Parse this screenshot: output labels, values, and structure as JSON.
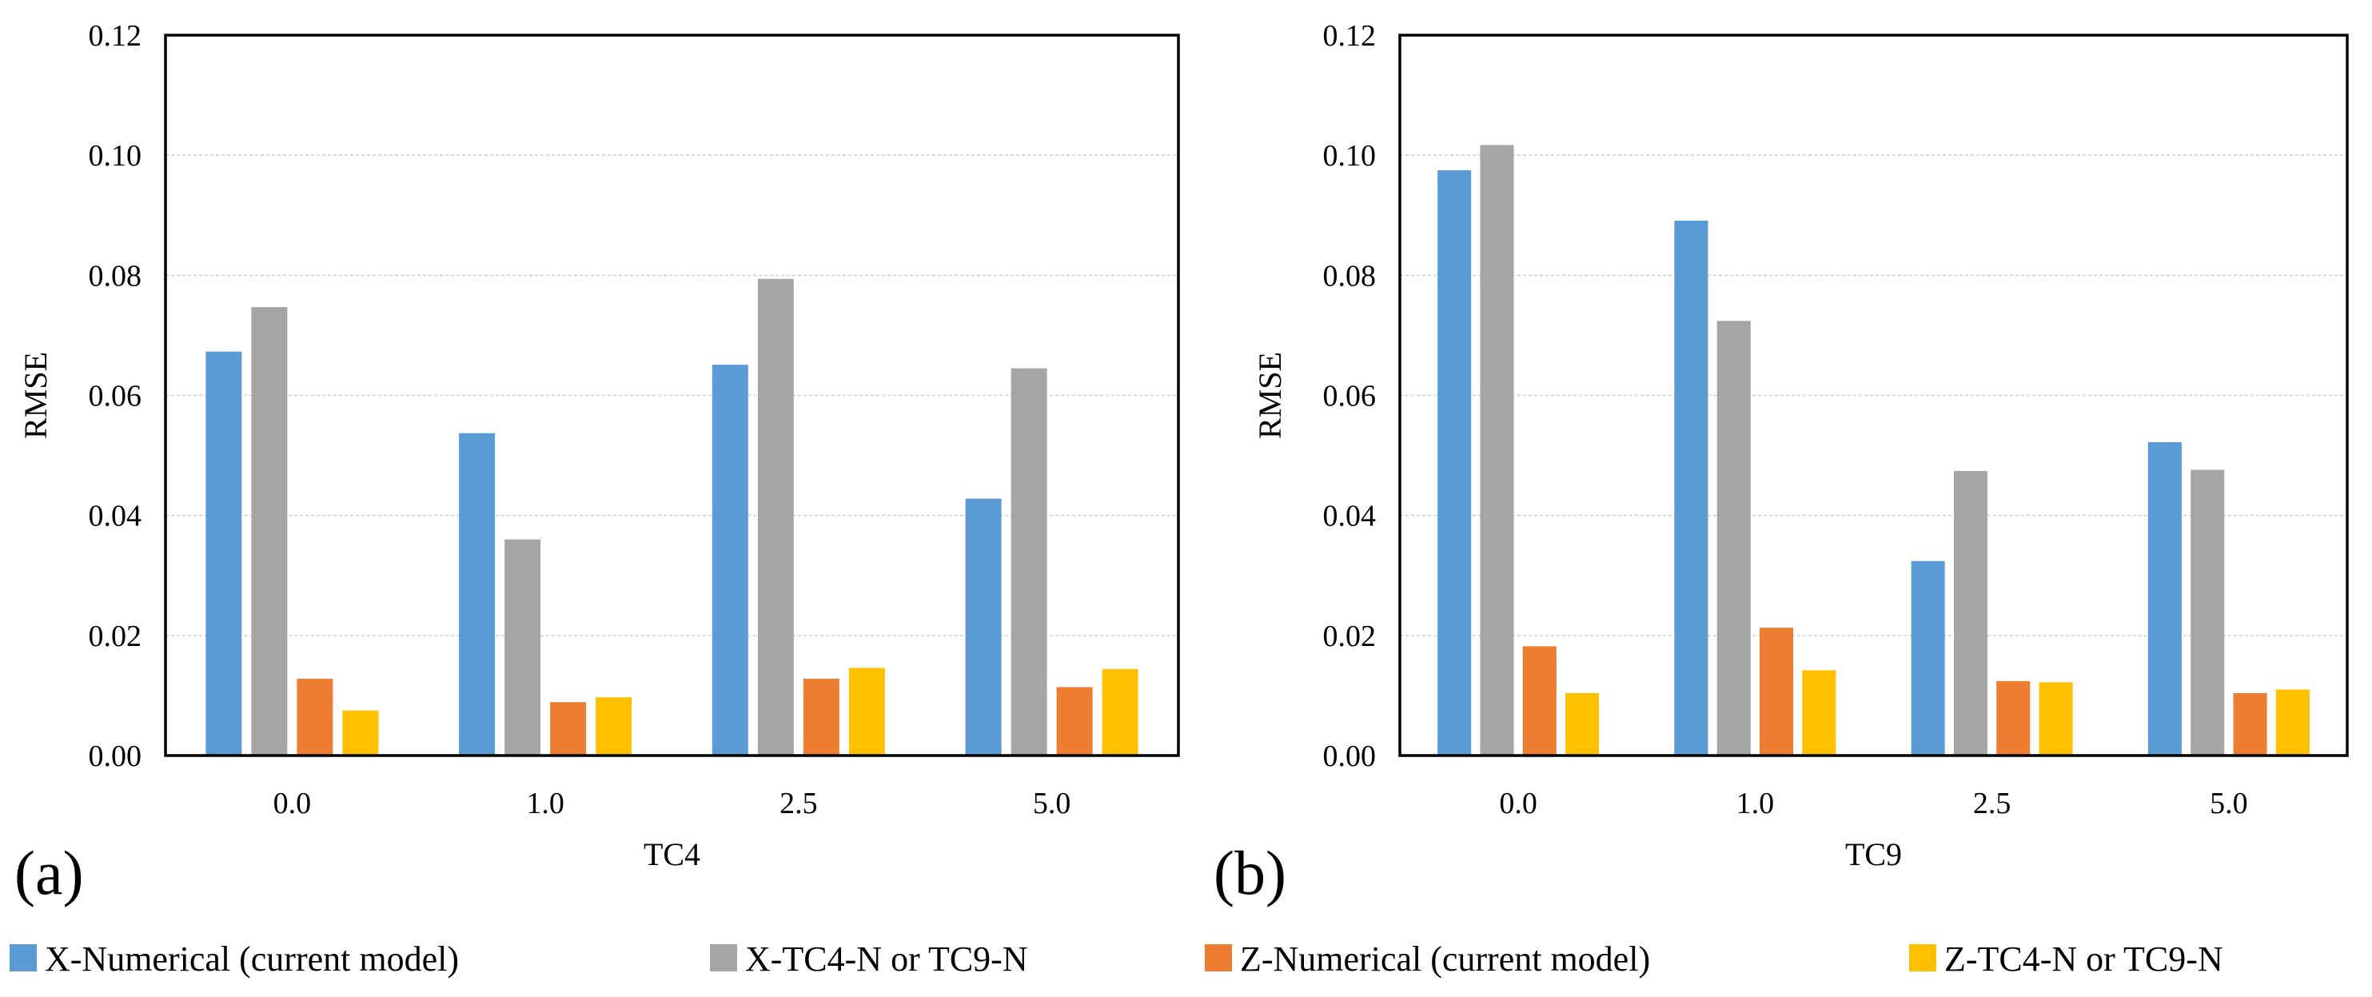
{
  "panel_labels": [
    "(a)",
    "(b)"
  ],
  "legend": [
    {
      "label": "X-Numerical (current model)",
      "color": "#5B9BD5"
    },
    {
      "label": "X-TC4-N or TC9-N",
      "color": "#A5A5A5"
    },
    {
      "label": "Z-Numerical (current model)",
      "color": "#ED7D31"
    },
    {
      "label": "Z-TC4-N or TC9-N",
      "color": "#FFC000"
    }
  ],
  "chart_data": [
    {
      "type": "bar",
      "panel": "(a)",
      "categories": [
        "0.0",
        "1.0",
        "2.5",
        "5.0"
      ],
      "xlabel": "TC4",
      "ylabel": "RMSE",
      "ylim": [
        0,
        0.12
      ],
      "yticks": [
        "0.00",
        "0.02",
        "0.04",
        "0.06",
        "0.08",
        "0.10",
        "0.12"
      ],
      "grid": true,
      "series": [
        {
          "name": "X-Numerical (current model)",
          "values": [
            0.0673,
            0.0537,
            0.0651,
            0.0428
          ]
        },
        {
          "name": "X-TC4-N or TC9-N",
          "values": [
            0.0747,
            0.036,
            0.0794,
            0.0645
          ]
        },
        {
          "name": "Z-Numerical (current model)",
          "values": [
            0.0128,
            0.0089,
            0.0128,
            0.0114
          ]
        },
        {
          "name": "Z-TC4-N or TC9-N",
          "values": [
            0.0075,
            0.0097,
            0.0146,
            0.0144
          ]
        }
      ]
    },
    {
      "type": "bar",
      "panel": "(b)",
      "categories": [
        "0.0",
        "1.0",
        "2.5",
        "5.0"
      ],
      "xlabel": "TC9",
      "ylabel": "RMSE",
      "ylim": [
        0,
        0.12
      ],
      "yticks": [
        "0.00",
        "0.02",
        "0.04",
        "0.06",
        "0.08",
        "0.10",
        "0.12"
      ],
      "grid": true,
      "series": [
        {
          "name": "X-Numerical (current model)",
          "values": [
            0.0975,
            0.0891,
            0.0324,
            0.0522
          ]
        },
        {
          "name": "X-TC4-N or TC9-N",
          "values": [
            0.1017,
            0.0724,
            0.0474,
            0.0476
          ]
        },
        {
          "name": "Z-Numerical (current model)",
          "values": [
            0.0182,
            0.0213,
            0.0124,
            0.0104
          ]
        },
        {
          "name": "Z-TC4-N or TC9-N",
          "values": [
            0.0104,
            0.0142,
            0.0122,
            0.011
          ]
        }
      ]
    }
  ]
}
